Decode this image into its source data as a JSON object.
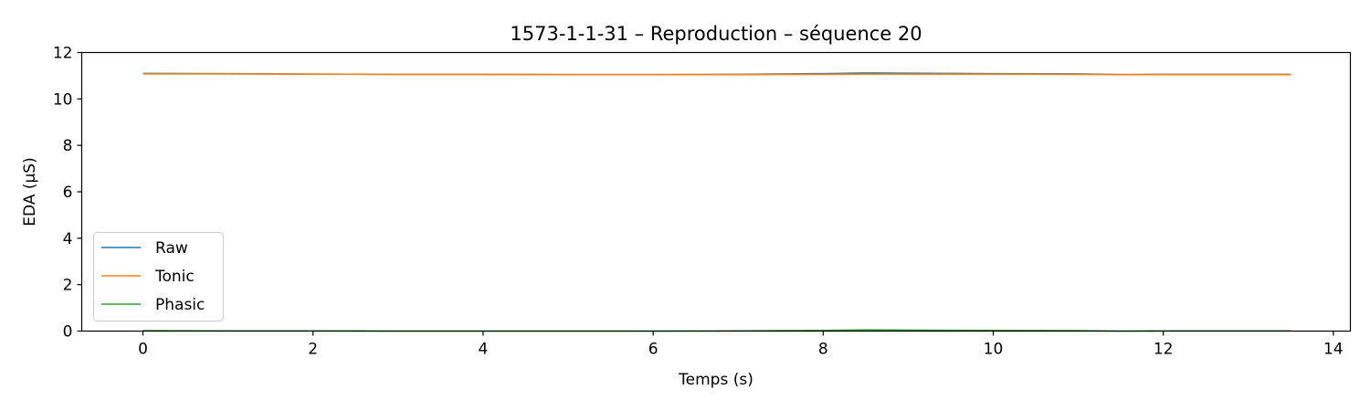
{
  "chart_data": {
    "type": "line",
    "title": "1573-1-1-31 – Reproduction – séquence 20",
    "xlabel": "Temps (s)",
    "ylabel": "EDA (µS)",
    "xlim": [
      -0.72,
      14.2
    ],
    "ylim": [
      0,
      12
    ],
    "xticks": [
      0,
      2,
      4,
      6,
      8,
      10,
      12,
      14
    ],
    "yticks": [
      0,
      2,
      4,
      6,
      8,
      10,
      12
    ],
    "grid": false,
    "legend_position": "lower-left",
    "series": [
      {
        "name": "Raw",
        "color": "#1f77b4",
        "x": [
          0,
          1,
          2,
          3,
          4,
          5,
          6,
          7,
          8,
          8.5,
          9,
          10,
          11,
          11.5,
          12,
          13,
          13.5
        ],
        "y": [
          11.1,
          11.09,
          11.07,
          11.06,
          11.06,
          11.05,
          11.05,
          11.06,
          11.09,
          11.12,
          11.11,
          11.09,
          11.08,
          11.05,
          11.06,
          11.06,
          11.06
        ]
      },
      {
        "name": "Tonic",
        "color": "#ff7f0e",
        "x": [
          0,
          1,
          2,
          3,
          4,
          5,
          6,
          7,
          8,
          8.5,
          9,
          10,
          11,
          11.5,
          12,
          13,
          13.5
        ],
        "y": [
          11.08,
          11.08,
          11.07,
          11.06,
          11.06,
          11.05,
          11.05,
          11.05,
          11.06,
          11.07,
          11.07,
          11.07,
          11.06,
          11.05,
          11.05,
          11.05,
          11.05
        ]
      },
      {
        "name": "Phasic",
        "color": "#2ca02c",
        "x": [
          0,
          1,
          2,
          3,
          4,
          5,
          6,
          7,
          8,
          8.5,
          9,
          10,
          11,
          11.5,
          12,
          13,
          13.5
        ],
        "y": [
          0.02,
          0.01,
          0.01,
          0.0,
          0.0,
          0.0,
          0.0,
          0.01,
          0.03,
          0.05,
          0.04,
          0.03,
          0.02,
          0.0,
          0.01,
          0.01,
          0.01
        ]
      }
    ]
  }
}
